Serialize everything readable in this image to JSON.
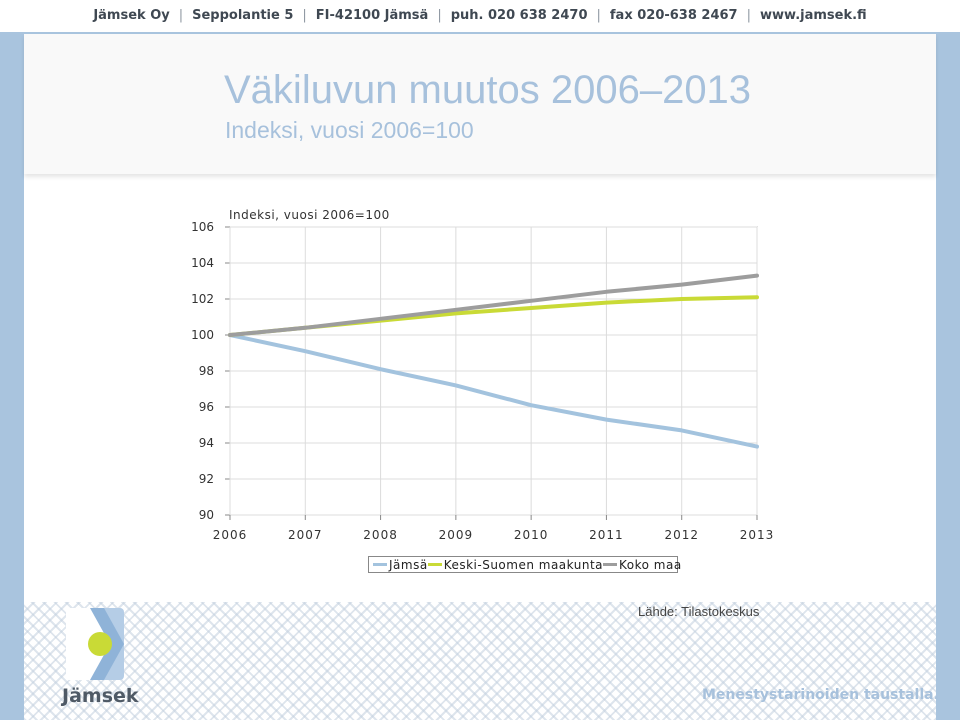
{
  "topbar": {
    "items": [
      "Jämsek Oy",
      "Seppolantie 5",
      "FI-42100 Jämsä",
      "puh. 020 638 2470",
      "fax 020-638 2467",
      "www.jamsek.fi"
    ]
  },
  "slide": {
    "title": "Väkiluvun muutos 2006–2013",
    "subtitle": "Indeksi, vuosi 2006=100",
    "source": "Lähde: Tilastokeskus"
  },
  "chart_data": {
    "type": "line",
    "title": "Indeksi, vuosi 2006=100",
    "x": [
      "2006",
      "2007",
      "2008",
      "2009",
      "2010",
      "2011",
      "2012",
      "2013"
    ],
    "ylim": [
      90,
      106
    ],
    "yticks": [
      106,
      104,
      102,
      100,
      98,
      96,
      94,
      92,
      90
    ],
    "grid": true,
    "legend_position": "bottom",
    "series": [
      {
        "name": "Jämsä",
        "color": "#a3c3de",
        "values": [
          100.0,
          99.1,
          98.1,
          97.2,
          96.1,
          95.3,
          94.7,
          93.8
        ]
      },
      {
        "name": "Keski-Suomen maakunta",
        "color": "#c9da36",
        "values": [
          100.0,
          100.4,
          100.8,
          101.2,
          101.5,
          101.8,
          102.0,
          102.1
        ]
      },
      {
        "name": "Koko maa",
        "color": "#9d9d9d",
        "values": [
          100.0,
          100.4,
          100.9,
          101.4,
          101.9,
          102.4,
          102.8,
          103.3
        ]
      }
    ]
  },
  "footer": {
    "logo_text": "Jämsek",
    "slogan": "Menestystarinoiden taustalla."
  }
}
